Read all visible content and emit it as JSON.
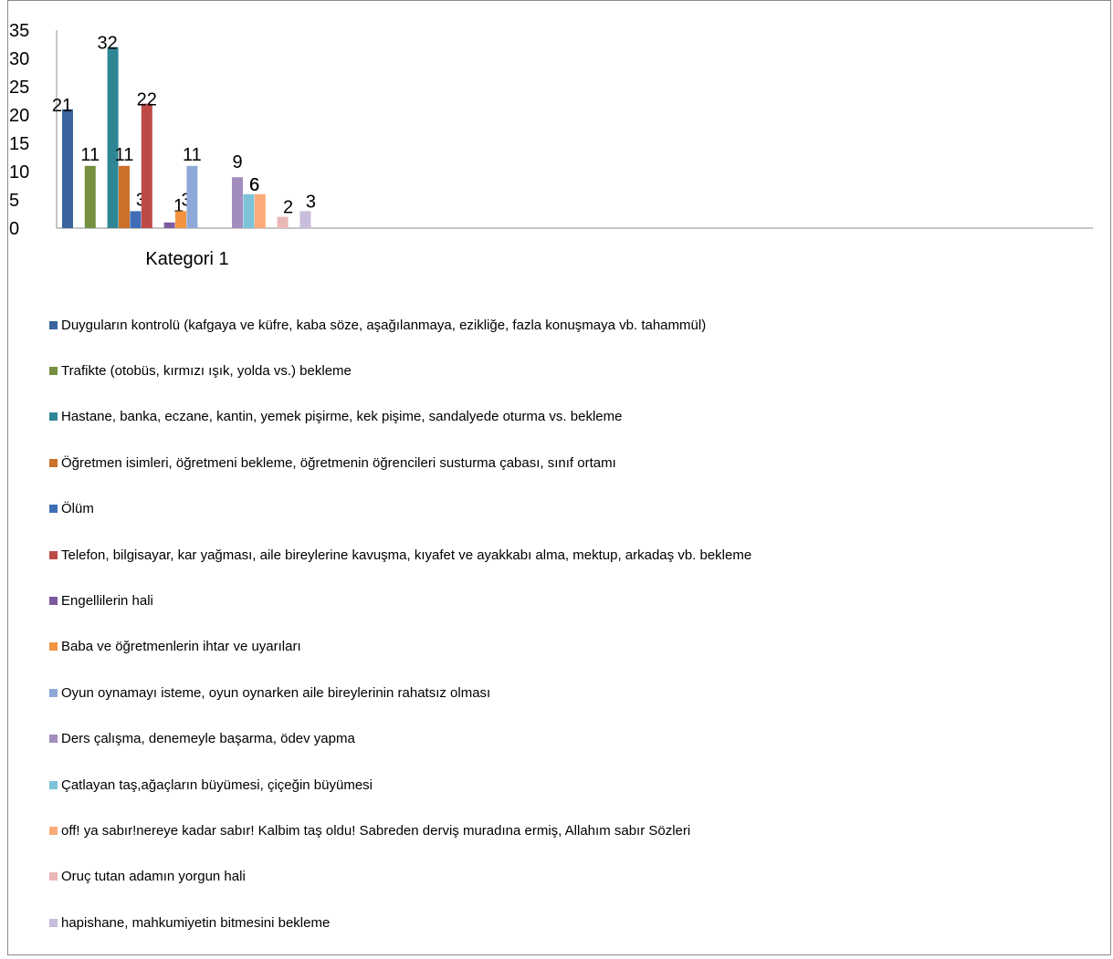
{
  "chart_data": {
    "type": "bar",
    "categories": [
      "Kategori 1"
    ],
    "ylim": [
      0,
      35
    ],
    "yticks": [
      0,
      5,
      10,
      15,
      20,
      25,
      30,
      35
    ],
    "legend_position": "bottom",
    "data_labels": true,
    "series": [
      {
        "name": "Duyguların kontrolü (kafgaya ve küfre, kaba söze, aşağılanmaya, ezikliğe, fazla konuşmaya vb. tahammül)",
        "values": [
          21
        ],
        "color": "#3A659F"
      },
      {
        "name": "Trafikte (otobüs, kırmızı ışık, yolda vs.) bekleme",
        "values": [
          11
        ],
        "color": "#759040"
      },
      {
        "name": "Hastane, banka, eczane, kantin, yemek pişirme, kek pişime, sandalyede oturma vs. bekleme",
        "values": [
          32
        ],
        "color": "#2E8695"
      },
      {
        "name": "Öğretmen isimleri, öğretmeni bekleme, öğretmenin öğrencileri susturma çabası, sınıf ortamı",
        "values": [
          11
        ],
        "color": "#CC7029"
      },
      {
        "name": "Ölüm",
        "values": [
          3
        ],
        "color": "#3F6DB6"
      },
      {
        "name": "Telefon, bilgisayar, kar yağması, aile bireylerine kavuşma, kıyafet ve ayakkabı alma, mektup, arkadaş  vb. bekleme",
        "values": [
          22
        ],
        "color": "#BE4A47"
      },
      {
        "name": "Engellilerin hali",
        "values": [
          1
        ],
        "color": "#7E5B9F"
      },
      {
        "name": "Baba ve öğretmenlerin ihtar ve uyarıları",
        "values": [
          3
        ],
        "color": "#F39440"
      },
      {
        "name": "Oyun oynamayı isteme, oyun oynarken aile bireylerinin rahatsız olması",
        "values": [
          11
        ],
        "color": "#8EA9D8"
      },
      {
        "name": "Ders çalışma, denemeyle başarma, ödev yapma",
        "values": [
          9
        ],
        "color": "#A38DBF"
      },
      {
        "name": "Çatlayan taş,ağaçların büyümesi, çiçeğin büyümesi",
        "values": [
          6
        ],
        "color": "#7CC3D9"
      },
      {
        "name": "off! ya sabır!nereye kadar sabır! Kalbim taş oldu! Sabreden derviş muradına ermiş, Allahım sabır Sözleri",
        "values": [
          6
        ],
        "color": "#FAAB78"
      },
      {
        "name": "Oruç tutan adamın yorgun hali",
        "values": [
          2
        ],
        "color": "#E9B8B7"
      },
      {
        "name": "hapishane, mahkumiyetin bitmesini bekleme",
        "values": [
          3
        ],
        "color": "#C9BDDD"
      }
    ]
  }
}
